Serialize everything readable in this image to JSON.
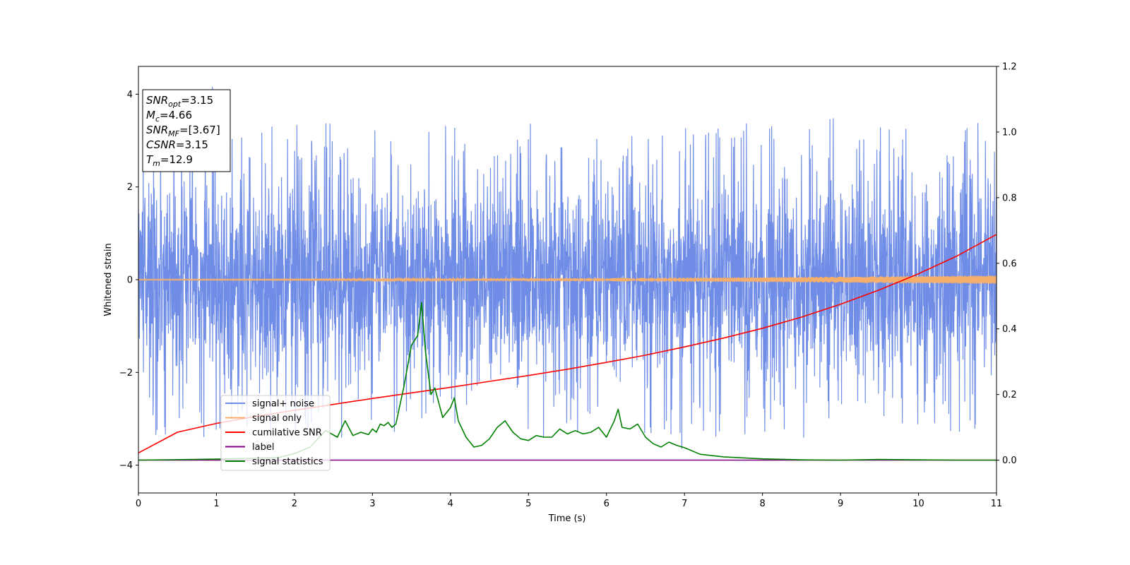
{
  "chart_data": {
    "type": "line",
    "title": "",
    "xlabel": "Time (s)",
    "ylabel": "Whitened strain",
    "y2label": "",
    "xlim": [
      0,
      11
    ],
    "ylim": [
      -4.6,
      4.6
    ],
    "y2lim": [
      -0.1,
      1.2
    ],
    "x_ticks": [
      0,
      1,
      2,
      3,
      4,
      5,
      6,
      7,
      8,
      9,
      10,
      11
    ],
    "y_ticks": [
      -4,
      -2,
      0,
      2,
      4
    ],
    "y_tick_labels": [
      "−4",
      "−2",
      "0",
      "2",
      "4"
    ],
    "y2_ticks": [
      0.0,
      0.2,
      0.4,
      0.6,
      0.8,
      1.0,
      1.2
    ],
    "y2_tick_labels": [
      "0.0",
      "0.2",
      "0.4",
      "0.6",
      "0.8",
      "1.0",
      "1.2"
    ],
    "grid": false,
    "legend_position": "lower-left",
    "info_box": [
      {
        "var": "SNR",
        "sub": "opt",
        "value": "=3.15"
      },
      {
        "var": "M",
        "sub": "c",
        "value": "=4.66"
      },
      {
        "var": "SNR",
        "sub": "MF",
        "value": "=[3.67]"
      },
      {
        "var": "CSNR",
        "sub": "",
        "value": "=3.15"
      },
      {
        "var": "T",
        "sub": "m",
        "value": "=12.9"
      }
    ],
    "series": [
      {
        "name": "signal+ noise",
        "color": "#6f8de6",
        "axis": "left",
        "kind": "noise",
        "amplitude_range": [
          -4.15,
          4.15
        ],
        "typical_envelope": [
          -2.6,
          2.8
        ]
      },
      {
        "name": "signal only",
        "color": "#f5ae6b",
        "axis": "left",
        "kind": "chirp",
        "amplitude_start": 0.01,
        "amplitude_end": 0.09
      },
      {
        "name": "cumilative SNR",
        "color": "#ff0000",
        "axis": "right",
        "x": [
          0,
          0.5,
          1,
          1.5,
          2,
          2.5,
          3,
          3.5,
          4,
          4.5,
          5,
          5.5,
          6,
          6.5,
          7,
          7.5,
          8,
          8.5,
          9,
          9.5,
          10,
          10.5,
          11
        ],
        "y": [
          0.022,
          0.085,
          0.112,
          0.133,
          0.152,
          0.17,
          0.188,
          0.205,
          0.222,
          0.24,
          0.258,
          0.277,
          0.298,
          0.32,
          0.345,
          0.372,
          0.402,
          0.436,
          0.475,
          0.519,
          0.568,
          0.623,
          0.688
        ]
      },
      {
        "name": "label",
        "color": "#800080",
        "axis": "right",
        "x": [
          0,
          11
        ],
        "y": [
          0.0,
          0.0
        ]
      },
      {
        "name": "signal statistics",
        "color": "#008000",
        "axis": "right",
        "x": [
          0,
          1,
          1.8,
          2.0,
          2.2,
          2.4,
          2.55,
          2.65,
          2.75,
          2.85,
          2.95,
          3.0,
          3.05,
          3.1,
          3.15,
          3.2,
          3.25,
          3.3,
          3.4,
          3.5,
          3.58,
          3.63,
          3.68,
          3.75,
          3.8,
          3.9,
          4.0,
          4.05,
          4.1,
          4.2,
          4.3,
          4.4,
          4.5,
          4.6,
          4.7,
          4.8,
          4.9,
          5.0,
          5.1,
          5.2,
          5.3,
          5.4,
          5.5,
          5.6,
          5.7,
          5.8,
          5.9,
          6.0,
          6.1,
          6.15,
          6.2,
          6.3,
          6.4,
          6.5,
          6.6,
          6.7,
          6.8,
          6.9,
          7.0,
          7.2,
          7.5,
          8.0,
          8.5,
          9.0,
          9.5,
          10.0,
          10.5,
          11.0
        ],
        "y": [
          0.0,
          0.003,
          0.008,
          0.02,
          0.04,
          0.09,
          0.07,
          0.12,
          0.075,
          0.085,
          0.078,
          0.095,
          0.085,
          0.11,
          0.105,
          0.115,
          0.1,
          0.11,
          0.22,
          0.35,
          0.38,
          0.48,
          0.33,
          0.2,
          0.22,
          0.13,
          0.16,
          0.19,
          0.12,
          0.07,
          0.04,
          0.045,
          0.065,
          0.1,
          0.12,
          0.085,
          0.065,
          0.06,
          0.075,
          0.07,
          0.07,
          0.095,
          0.08,
          0.09,
          0.08,
          0.085,
          0.1,
          0.07,
          0.12,
          0.155,
          0.1,
          0.095,
          0.11,
          0.07,
          0.05,
          0.04,
          0.055,
          0.045,
          0.038,
          0.018,
          0.01,
          0.004,
          0.001,
          0.0,
          0.002,
          0.001,
          0.0,
          0.0
        ]
      }
    ]
  }
}
